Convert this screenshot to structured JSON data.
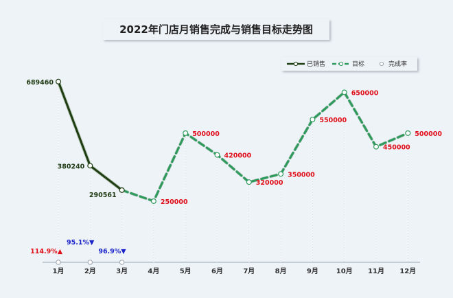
{
  "chart_data": {
    "type": "line",
    "title": "2022年门店月销售完成与销售目标走势图",
    "categories": [
      "1月",
      "2月",
      "3月",
      "4月",
      "5月",
      "6月",
      "7月",
      "8月",
      "9月",
      "10月",
      "11月",
      "12月"
    ],
    "series": [
      {
        "name": "已销售",
        "values": [
          689460,
          380240,
          290561,
          null,
          null,
          null,
          null,
          null,
          null,
          null,
          null,
          null
        ],
        "color": "#1e3d12",
        "style": "solid"
      },
      {
        "name": "目标",
        "values": [
          600000,
          400000,
          300000,
          250000,
          500000,
          420000,
          320000,
          350000,
          550000,
          650000,
          450000,
          500000
        ],
        "color": "#2e9a5c",
        "style": "dashed"
      },
      {
        "name": "完成率",
        "values": [
          114.9,
          95.1,
          96.9,
          null,
          null,
          null,
          null,
          null,
          null,
          null,
          null,
          null
        ],
        "unit": "%"
      }
    ],
    "completion_labels": [
      "114.9%▲",
      "95.1%▼",
      "96.9%▼"
    ],
    "completion_colors": [
      "#e0101a",
      "#1a22c8",
      "#1a22c8"
    ],
    "sold_labels": [
      "689460",
      "380240",
      "290561"
    ],
    "target_labels": [
      "",
      "",
      "",
      "250000",
      "500000",
      "420000",
      "320000",
      "350000",
      "550000",
      "650000",
      "450000",
      "500000"
    ],
    "ylim": [
      0,
      800000
    ],
    "grid": false,
    "legend_position": "top-right"
  },
  "legend": {
    "sold": "已销售",
    "target": "目标",
    "rate": "完成率"
  },
  "colors": {
    "background": "#eef3f8",
    "sold": "#1e3d12",
    "target": "#2e9a5c",
    "up": "#e0101a",
    "down": "#1a22c8"
  }
}
